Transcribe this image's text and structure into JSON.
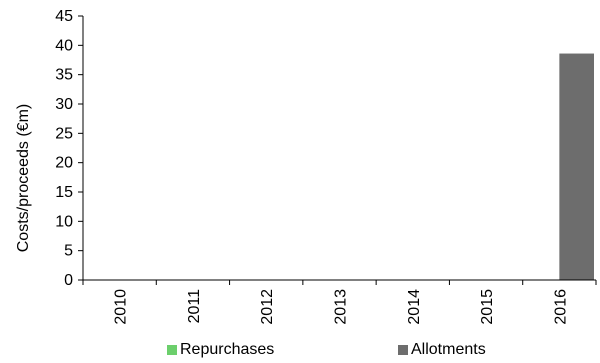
{
  "chart_data": {
    "type": "bar",
    "categories": [
      "2010",
      "2011",
      "2012",
      "2013",
      "2014",
      "2015",
      "2016"
    ],
    "series": [
      {
        "name": "Repurchases",
        "values": [
          0,
          0,
          0,
          0,
          0,
          0,
          0
        ],
        "color": "#6ccf6c"
      },
      {
        "name": "Allotments",
        "values": [
          0,
          0,
          0,
          0,
          0,
          0,
          38.6
        ],
        "color": "#6d6d6d"
      }
    ],
    "ylabel": "Costs/proceeds (€m)",
    "ylim": [
      0,
      45
    ],
    "yticks": [
      "0",
      "5",
      "10",
      "15",
      "20",
      "25",
      "30",
      "35",
      "40",
      "45"
    ],
    "grid": false,
    "legend_position": "bottom"
  }
}
